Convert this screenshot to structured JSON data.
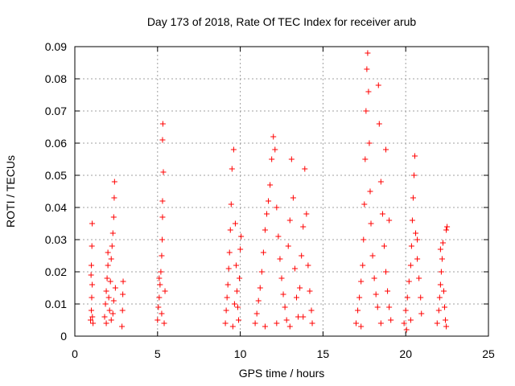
{
  "chart_data": {
    "type": "scatter",
    "title": "Day 173 of 2018, Rate Of TEC Index for receiver arub",
    "xlabel": "GPS time / hours",
    "ylabel": "ROTI / TECUs",
    "xlim": [
      0,
      25
    ],
    "ylim": [
      0,
      0.09
    ],
    "xticks": [
      0,
      5,
      10,
      15,
      20,
      25
    ],
    "xtick_labels": [
      "0",
      "5",
      "10",
      "15",
      "20",
      "25"
    ],
    "yticks": [
      0,
      0.01,
      0.02,
      0.03,
      0.04,
      0.05,
      0.06,
      0.07,
      0.08,
      0.09
    ],
    "ytick_labels": [
      "0",
      "0.01",
      "0.02",
      "0.03",
      "0.04",
      "0.05",
      "0.06",
      "0.07",
      "0.08",
      "0.09"
    ],
    "grid": true,
    "marker": "+",
    "color": "#ff0000",
    "series": [
      {
        "name": "ROTI",
        "points": [
          [
            0.95,
            0.005
          ],
          [
            1.0,
            0.008
          ],
          [
            1.02,
            0.012
          ],
          [
            1.05,
            0.016
          ],
          [
            1.0,
            0.022
          ],
          [
            1.03,
            0.028
          ],
          [
            1.05,
            0.035
          ],
          [
            0.98,
            0.019
          ],
          [
            1.06,
            0.006
          ],
          [
            1.1,
            0.004
          ],
          [
            1.8,
            0.006
          ],
          [
            1.85,
            0.01
          ],
          [
            1.9,
            0.014
          ],
          [
            1.95,
            0.018
          ],
          [
            2.0,
            0.022
          ],
          [
            2.05,
            0.012
          ],
          [
            2.1,
            0.008
          ],
          [
            2.15,
            0.017
          ],
          [
            2.2,
            0.024
          ],
          [
            2.25,
            0.028
          ],
          [
            2.3,
            0.032
          ],
          [
            2.35,
            0.037
          ],
          [
            2.38,
            0.043
          ],
          [
            2.4,
            0.048
          ],
          [
            2.2,
            0.005
          ],
          [
            2.3,
            0.007
          ],
          [
            2.35,
            0.011
          ],
          [
            2.0,
            0.026
          ],
          [
            1.9,
            0.004
          ],
          [
            2.45,
            0.015
          ],
          [
            2.85,
            0.003
          ],
          [
            2.88,
            0.008
          ],
          [
            2.9,
            0.013
          ],
          [
            2.92,
            0.017
          ],
          [
            5.0,
            0.005
          ],
          [
            5.05,
            0.009
          ],
          [
            5.1,
            0.012
          ],
          [
            5.15,
            0.016
          ],
          [
            5.2,
            0.02
          ],
          [
            5.25,
            0.025
          ],
          [
            5.28,
            0.03
          ],
          [
            5.3,
            0.037
          ],
          [
            5.3,
            0.042
          ],
          [
            5.35,
            0.051
          ],
          [
            5.3,
            0.061
          ],
          [
            5.32,
            0.066
          ],
          [
            5.25,
            0.007
          ],
          [
            5.4,
            0.004
          ],
          [
            5.45,
            0.014
          ],
          [
            5.1,
            0.018
          ],
          [
            9.1,
            0.004
          ],
          [
            9.15,
            0.008
          ],
          [
            9.2,
            0.012
          ],
          [
            9.25,
            0.016
          ],
          [
            9.3,
            0.021
          ],
          [
            9.35,
            0.026
          ],
          [
            9.4,
            0.033
          ],
          [
            9.45,
            0.041
          ],
          [
            9.5,
            0.052
          ],
          [
            9.6,
            0.058
          ],
          [
            9.7,
            0.035
          ],
          [
            9.75,
            0.022
          ],
          [
            9.8,
            0.014
          ],
          [
            9.85,
            0.009
          ],
          [
            9.9,
            0.005
          ],
          [
            9.95,
            0.018
          ],
          [
            10.0,
            0.027
          ],
          [
            10.05,
            0.031
          ],
          [
            9.55,
            0.003
          ],
          [
            9.65,
            0.01
          ],
          [
            10.9,
            0.004
          ],
          [
            11.0,
            0.007
          ],
          [
            11.1,
            0.011
          ],
          [
            11.2,
            0.015
          ],
          [
            11.3,
            0.02
          ],
          [
            11.4,
            0.026
          ],
          [
            11.5,
            0.033
          ],
          [
            11.6,
            0.038
          ],
          [
            11.7,
            0.042
          ],
          [
            11.8,
            0.047
          ],
          [
            11.9,
            0.055
          ],
          [
            12.0,
            0.062
          ],
          [
            12.1,
            0.058
          ],
          [
            12.2,
            0.04
          ],
          [
            12.3,
            0.031
          ],
          [
            12.4,
            0.024
          ],
          [
            12.5,
            0.018
          ],
          [
            12.6,
            0.013
          ],
          [
            12.7,
            0.009
          ],
          [
            12.8,
            0.005
          ],
          [
            12.9,
            0.028
          ],
          [
            13.0,
            0.036
          ],
          [
            13.1,
            0.055
          ],
          [
            13.2,
            0.043
          ],
          [
            13.3,
            0.021
          ],
          [
            13.4,
            0.012
          ],
          [
            13.5,
            0.006
          ],
          [
            13.6,
            0.015
          ],
          [
            13.7,
            0.025
          ],
          [
            13.8,
            0.034
          ],
          [
            13.9,
            0.052
          ],
          [
            14.0,
            0.038
          ],
          [
            14.1,
            0.022
          ],
          [
            14.2,
            0.014
          ],
          [
            14.3,
            0.008
          ],
          [
            14.35,
            0.004
          ],
          [
            11.5,
            0.003
          ],
          [
            12.2,
            0.004
          ],
          [
            13.0,
            0.003
          ],
          [
            13.8,
            0.006
          ],
          [
            17.0,
            0.004
          ],
          [
            17.1,
            0.008
          ],
          [
            17.2,
            0.012
          ],
          [
            17.3,
            0.017
          ],
          [
            17.4,
            0.022
          ],
          [
            17.45,
            0.03
          ],
          [
            17.5,
            0.041
          ],
          [
            17.55,
            0.055
          ],
          [
            17.6,
            0.07
          ],
          [
            17.65,
            0.083
          ],
          [
            17.7,
            0.088
          ],
          [
            17.75,
            0.076
          ],
          [
            17.8,
            0.06
          ],
          [
            17.85,
            0.045
          ],
          [
            17.9,
            0.035
          ],
          [
            18.0,
            0.025
          ],
          [
            18.1,
            0.018
          ],
          [
            18.2,
            0.013
          ],
          [
            18.3,
            0.009
          ],
          [
            18.35,
            0.078
          ],
          [
            18.4,
            0.066
          ],
          [
            18.5,
            0.048
          ],
          [
            18.6,
            0.038
          ],
          [
            18.7,
            0.028
          ],
          [
            18.8,
            0.02
          ],
          [
            18.9,
            0.014
          ],
          [
            19.0,
            0.009
          ],
          [
            19.1,
            0.005
          ],
          [
            17.3,
            0.003
          ],
          [
            18.5,
            0.004
          ],
          [
            18.8,
            0.058
          ],
          [
            19.0,
            0.036
          ],
          [
            19.9,
            0.004
          ],
          [
            20.0,
            0.008
          ],
          [
            20.1,
            0.012
          ],
          [
            20.2,
            0.017
          ],
          [
            20.3,
            0.022
          ],
          [
            20.35,
            0.028
          ],
          [
            20.4,
            0.036
          ],
          [
            20.45,
            0.043
          ],
          [
            20.5,
            0.05
          ],
          [
            20.55,
            0.056
          ],
          [
            20.6,
            0.032
          ],
          [
            20.7,
            0.024
          ],
          [
            20.8,
            0.018
          ],
          [
            20.9,
            0.012
          ],
          [
            20.95,
            0.007
          ],
          [
            20.05,
            0.002
          ],
          [
            20.3,
            0.005
          ],
          [
            20.7,
            0.03
          ],
          [
            21.9,
            0.004
          ],
          [
            22.0,
            0.008
          ],
          [
            22.05,
            0.012
          ],
          [
            22.1,
            0.016
          ],
          [
            22.15,
            0.02
          ],
          [
            22.2,
            0.024
          ],
          [
            22.25,
            0.029
          ],
          [
            22.3,
            0.014
          ],
          [
            22.35,
            0.009
          ],
          [
            22.4,
            0.005
          ],
          [
            22.45,
            0.033
          ],
          [
            22.5,
            0.034
          ],
          [
            22.45,
            0.003
          ],
          [
            22.1,
            0.027
          ]
        ]
      }
    ]
  }
}
